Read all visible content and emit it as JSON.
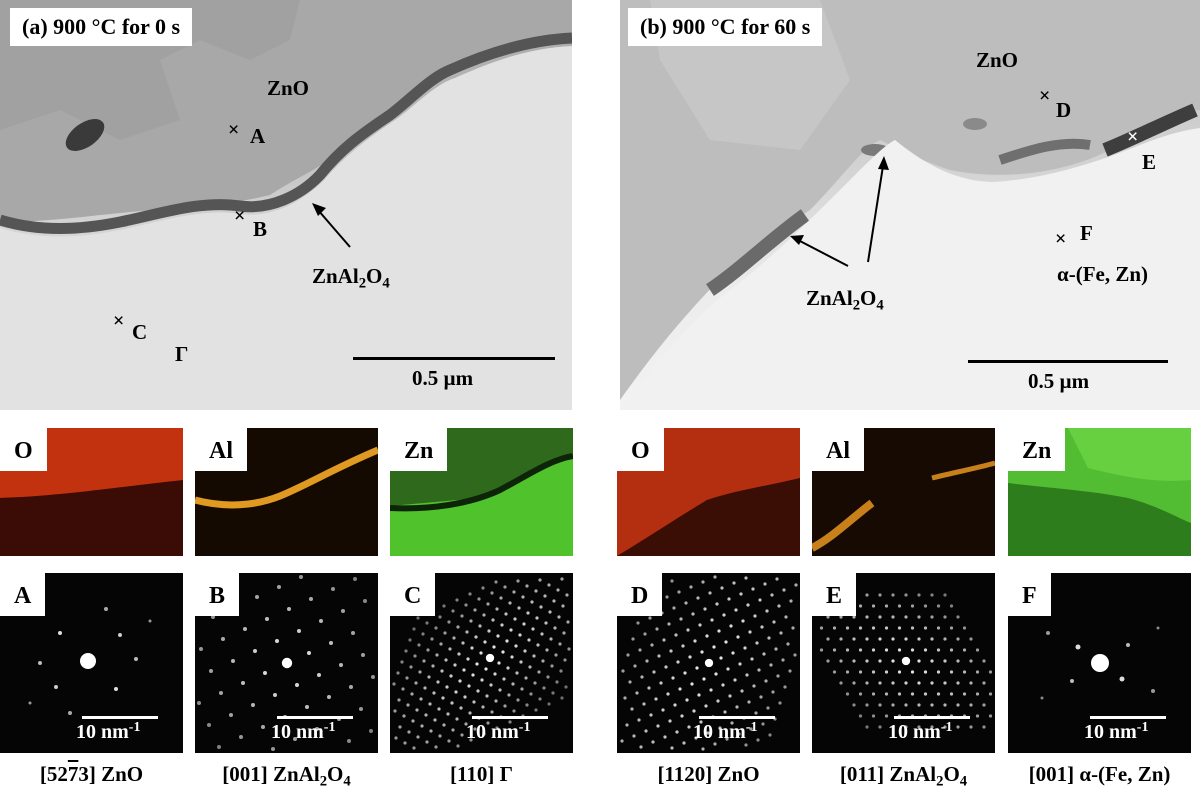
{
  "panel_a": {
    "title": "(a) 900 °C for 0 s",
    "labels": {
      "zno": "ZnO",
      "spinel_main": "ZnAl",
      "spinel_sub1": "2",
      "spinel_mid": "O",
      "spinel_sub2": "4",
      "gamma": "Γ"
    },
    "points": {
      "a": "A",
      "b": "B",
      "c": "C"
    },
    "scale": "0.5 µm"
  },
  "panel_b": {
    "title": "(b) 900 °C for 60 s",
    "labels": {
      "zno": "ZnO",
      "spinel_main": "ZnAl",
      "spinel_sub1": "2",
      "spinel_mid": "O",
      "spinel_sub2": "4",
      "alpha": "α-(Fe, Zn)"
    },
    "points": {
      "d": "D",
      "e": "E",
      "f": "F"
    },
    "scale": "0.5 µm"
  },
  "cross_symbol": "×",
  "maps": [
    "O",
    "Al",
    "Zn",
    "O",
    "Al",
    "Zn"
  ],
  "diffraction": {
    "tags": [
      "A",
      "B",
      "C",
      "D",
      "E",
      "F"
    ],
    "scale_main": "10 nm",
    "scale_sup": "-1"
  },
  "zone_axes": {
    "a": {
      "pre": "[52",
      "bar": "7",
      "post": "3] ZnO"
    },
    "b": {
      "main": "[001] ZnAl",
      "s1": "2",
      "mid": "O",
      "s2": "4"
    },
    "c": "[110] Γ",
    "d": "[1120] ZnO",
    "e": {
      "main": "[011] ZnAl",
      "s1": "2",
      "mid": "O",
      "s2": "4"
    },
    "f": "[001] α-(Fe, Zn)"
  },
  "colors": {
    "oxygen": "#d23a12",
    "aluminum": "#e8a020",
    "zinc": "#5fd03a"
  }
}
